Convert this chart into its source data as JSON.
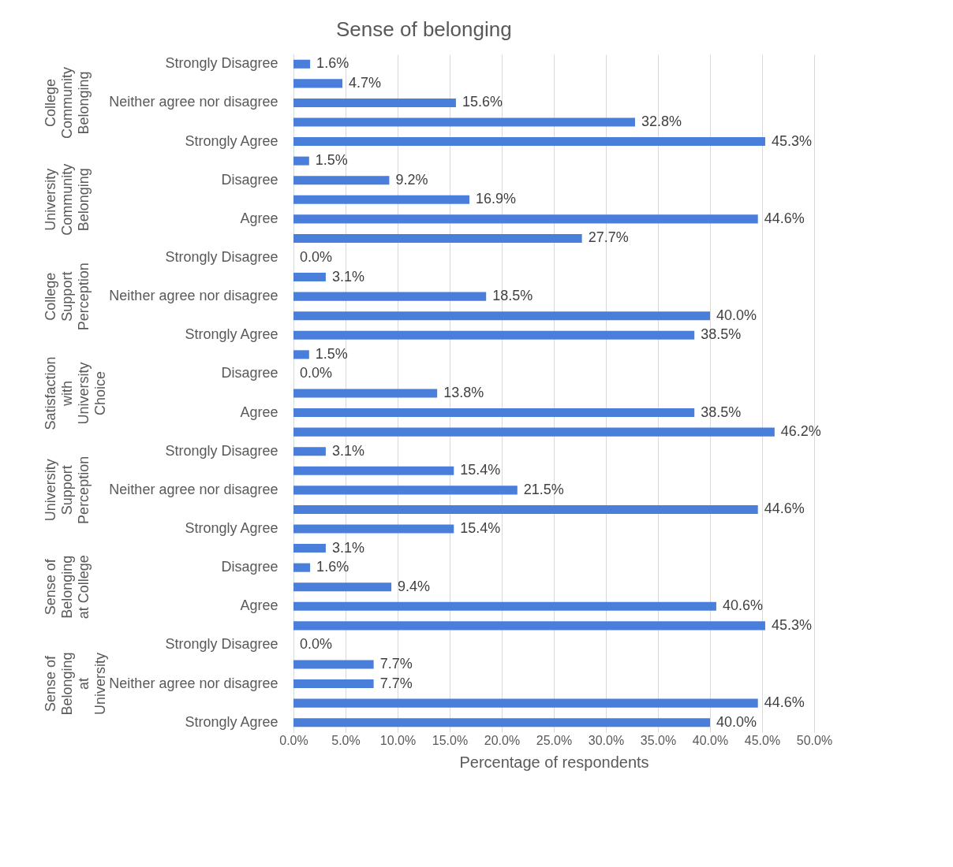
{
  "chart_data": {
    "type": "bar",
    "orientation": "horizontal",
    "title": "Sense of belonging",
    "xlabel": "Percentage of respondents",
    "categories": [
      "Strongly Disagree",
      null,
      "Neither agree nor disagree",
      null,
      "Strongly Agree",
      null,
      "Disagree",
      null,
      "Agree",
      null,
      "Strongly Disagree",
      null,
      "Neither agree nor disagree",
      null,
      "Strongly Agree",
      null,
      "Disagree",
      null,
      "Agree",
      null,
      "Strongly Disagree",
      null,
      "Neither agree nor disagree",
      null,
      "Strongly Agree",
      null,
      "Disagree",
      null,
      "Agree",
      null,
      "Strongly Disagree",
      null,
      "Neither agree nor disagree",
      null,
      "Strongly Agree"
    ],
    "values": [
      1.6,
      4.7,
      15.6,
      32.8,
      45.3,
      1.5,
      9.2,
      16.9,
      44.6,
      27.7,
      0.0,
      3.1,
      18.5,
      40.0,
      38.5,
      1.5,
      0.0,
      13.8,
      38.5,
      46.2,
      3.1,
      15.4,
      21.5,
      44.6,
      15.4,
      3.1,
      1.6,
      9.4,
      40.6,
      45.3,
      0.0,
      7.7,
      7.7,
      44.6,
      40.0
    ],
    "value_labels": [
      "1.6%",
      "4.7%",
      "15.6%",
      "32.8%",
      "45.3%",
      "1.5%",
      "9.2%",
      "16.9%",
      "44.6%",
      "27.7%",
      "0.0%",
      "3.1%",
      "18.5%",
      "40.0%",
      "38.5%",
      "1.5%",
      "0.0%",
      "13.8%",
      "38.5%",
      "46.2%",
      "3.1%",
      "15.4%",
      "21.5%",
      "44.6%",
      "15.4%",
      "3.1%",
      "1.6%",
      "9.4%",
      "40.6%",
      "45.3%",
      "0.0%",
      "7.7%",
      "7.7%",
      "44.6%",
      "40.0%"
    ],
    "color": "#4a7edb",
    "annotations": [
      "College Community Belonging",
      "University Community Belonging",
      "College Support Perception",
      "Satisfaction with University Choice",
      "University Support Perception",
      "Sense of Belonging at College",
      "Sense of Belonging at University"
    ],
    "xlim": [
      0,
      50
    ],
    "xticks": [
      {
        "value": 0,
        "label": "0.0%"
      },
      {
        "value": 5,
        "label": "5.0%"
      },
      {
        "value": 10,
        "label": "10.0%"
      },
      {
        "value": 15,
        "label": "15.0%"
      },
      {
        "value": 20,
        "label": "20.0%"
      },
      {
        "value": 25,
        "label": "25.0%"
      },
      {
        "value": 30,
        "label": "30.0%"
      },
      {
        "value": 35,
        "label": "35.0%"
      },
      {
        "value": 40,
        "label": "40.0%"
      },
      {
        "value": 45,
        "label": "45.0%"
      },
      {
        "value": 50,
        "label": "50.0%"
      }
    ],
    "grid": "x"
  }
}
